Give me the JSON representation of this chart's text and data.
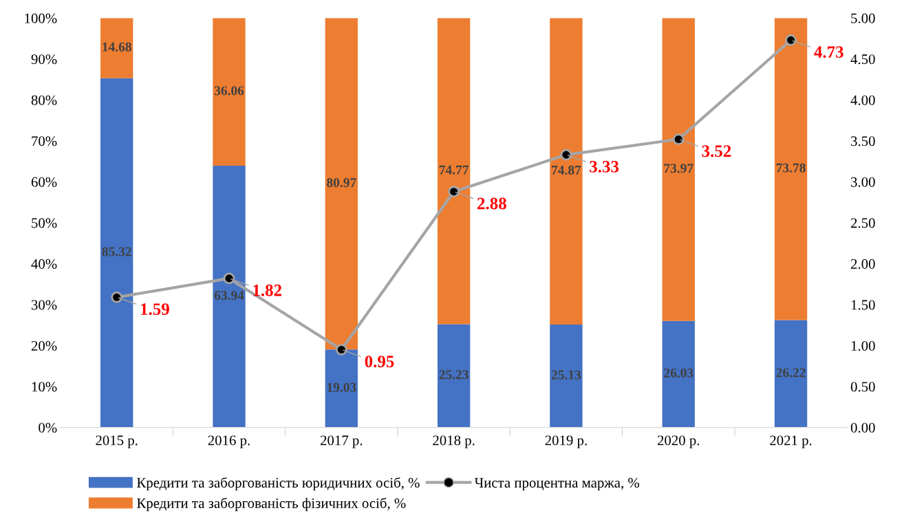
{
  "chart_data": {
    "type": "bar",
    "stacked": true,
    "categories": [
      "2015 р.",
      "2016 р.",
      "2017 р.",
      "2018 р.",
      "2019 р.",
      "2020 р.",
      "2021 р."
    ],
    "series": [
      {
        "name": "Кредити та заборгованість юридичних осіб, %",
        "color": "#4472c4",
        "values": [
          85.32,
          63.94,
          19.03,
          25.23,
          25.13,
          26.03,
          26.22
        ]
      },
      {
        "name": "Кредити та заборгованість фізичних осіб, %",
        "color": "#ed7d31",
        "values": [
          14.68,
          36.06,
          80.97,
          74.77,
          74.87,
          73.97,
          73.78
        ]
      },
      {
        "name": "Чиста процентна маржа, %",
        "type": "line",
        "axis": "y2",
        "color": "#a5a5a5",
        "marker": "circle",
        "values": [
          1.59,
          1.82,
          0.95,
          2.88,
          3.33,
          3.52,
          4.73
        ]
      }
    ],
    "ylim": [
      0,
      100
    ],
    "yticks": [
      {
        "value": 0,
        "label": "0%"
      },
      {
        "value": 10,
        "label": "10%"
      },
      {
        "value": 20,
        "label": "20%"
      },
      {
        "value": 30,
        "label": "30%"
      },
      {
        "value": 40,
        "label": "40%"
      },
      {
        "value": 50,
        "label": "50%"
      },
      {
        "value": 60,
        "label": "60%"
      },
      {
        "value": 70,
        "label": "70%"
      },
      {
        "value": 80,
        "label": "80%"
      },
      {
        "value": 90,
        "label": "90%"
      },
      {
        "value": 100,
        "label": "100%"
      }
    ],
    "y2lim": [
      0,
      5
    ],
    "y2ticks": [
      {
        "value": 0,
        "label": "0.00"
      },
      {
        "value": 0.5,
        "label": "0.50"
      },
      {
        "value": 1,
        "label": "1.00"
      },
      {
        "value": 1.5,
        "label": "1.50"
      },
      {
        "value": 2,
        "label": "2.00"
      },
      {
        "value": 2.5,
        "label": "2.50"
      },
      {
        "value": 3,
        "label": "3.00"
      },
      {
        "value": 3.5,
        "label": "3.50"
      },
      {
        "value": 4,
        "label": "4.00"
      },
      {
        "value": 4.5,
        "label": "4.50"
      },
      {
        "value": 5,
        "label": "5.00"
      }
    ],
    "data_labels": true,
    "grid": false,
    "legend": "bottom"
  }
}
